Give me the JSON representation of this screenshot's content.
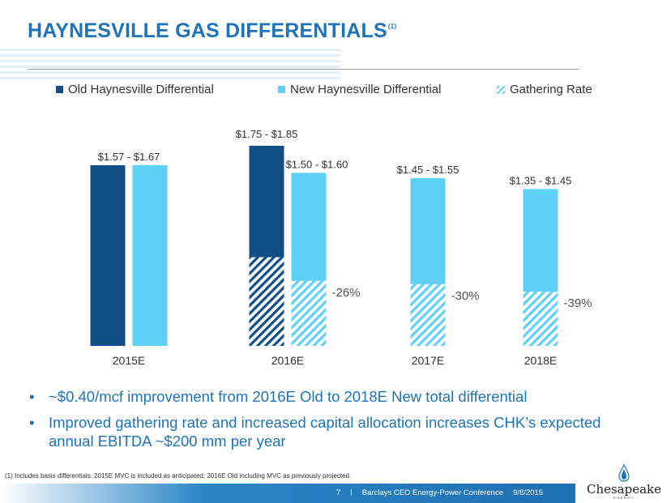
{
  "slide": {
    "title": "HAYNESVILLE GAS DIFFERENTIALS",
    "title_footnote": "(1)",
    "bullets": [
      "~$0.40/mcf improvement from 2016E Old to 2018E New total differential",
      "Improved gathering rate and increased capital allocation increases CHK’s expected annual EBITDA ~$200 mm per year"
    ],
    "bullet_symbol": "•",
    "footnote": "(1) Includes basis differentials.  2015E MVC is included as anticipated; 2016E Old including MVC as previously projected.",
    "footer": {
      "page": "7",
      "sep": "I",
      "conference": "Barclays CEO Energy-Power Conference",
      "date": "9/8/2015"
    },
    "logo": {
      "name": "Chesapeake",
      "sub": "ENERGY"
    }
  },
  "colors": {
    "title": "#1e73b9",
    "old": "#0f4f86",
    "new": "#5fd0f7",
    "bullet_text": "#1e73b9"
  },
  "chart_data": {
    "type": "bar",
    "title": "",
    "xlabel": "",
    "ylabel": "",
    "categories": [
      "2015E",
      "2016E",
      "2017E",
      "2018E"
    ],
    "legend": [
      {
        "key": "old",
        "label": "Old Haynesville Differential"
      },
      {
        "key": "new",
        "label": "New Haynesville Differential"
      },
      {
        "key": "gathering",
        "label": "Gathering Rate"
      }
    ],
    "old": [
      {
        "category": "2015E",
        "total": 1.67,
        "gathering": null,
        "label": "$1.57 - $1.67"
      },
      {
        "category": "2016E",
        "total": 1.85,
        "gathering": 0.82,
        "label": "$1.75 - $1.85"
      }
    ],
    "new": [
      {
        "category": "2015E",
        "total": 1.67,
        "gathering": null,
        "label": null,
        "change": null
      },
      {
        "category": "2016E",
        "total": 1.6,
        "gathering": 0.6,
        "label": "$1.50 - $1.60",
        "change": "-26%"
      },
      {
        "category": "2017E",
        "total": 1.55,
        "gathering": 0.57,
        "label": "$1.45 - $1.55",
        "change": "-30%"
      },
      {
        "category": "2018E",
        "total": 1.45,
        "gathering": 0.5,
        "label": "$1.35 - $1.45",
        "change": "-39%"
      }
    ],
    "ylim": [
      0,
      1.85
    ]
  }
}
